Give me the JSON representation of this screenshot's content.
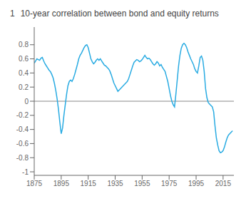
{
  "chart_data": {
    "type": "line",
    "title": "10-year correlation between bond and equity returns",
    "ylabel": "1",
    "color": "#29ABE2",
    "grid": false,
    "xlim": [
      1875,
      2023
    ],
    "ylim": [
      -1.05,
      1.05
    ],
    "xticks": [
      1875,
      1895,
      1915,
      1935,
      1955,
      1975,
      1995,
      2015
    ],
    "yticks": [
      -1,
      -0.8,
      -0.6,
      -0.4,
      -0.2,
      0,
      0.2,
      0.4,
      0.6,
      0.8
    ],
    "annotations": [
      {
        "type": "hline",
        "y": 0,
        "color": "#888888"
      }
    ],
    "x": [
      1875,
      1876,
      1877,
      1878,
      1879,
      1880,
      1881,
      1882,
      1883,
      1884,
      1885,
      1886,
      1887,
      1888,
      1889,
      1890,
      1891,
      1892,
      1893,
      1894,
      1895,
      1896,
      1897,
      1898,
      1899,
      1900,
      1901,
      1902,
      1903,
      1904,
      1905,
      1906,
      1907,
      1908,
      1909,
      1910,
      1911,
      1912,
      1913,
      1914,
      1915,
      1916,
      1917,
      1918,
      1919,
      1920,
      1921,
      1922,
      1923,
      1924,
      1925,
      1926,
      1927,
      1928,
      1929,
      1930,
      1931,
      1932,
      1933,
      1934,
      1935,
      1936,
      1937,
      1938,
      1939,
      1940,
      1941,
      1942,
      1943,
      1944,
      1945,
      1946,
      1947,
      1948,
      1949,
      1950,
      1951,
      1952,
      1953,
      1954,
      1955,
      1956,
      1957,
      1958,
      1959,
      1960,
      1961,
      1962,
      1963,
      1964,
      1965,
      1966,
      1967,
      1968,
      1969,
      1970,
      1971,
      1972,
      1973,
      1974,
      1975,
      1976,
      1977,
      1978,
      1979,
      1980,
      1981,
      1982,
      1983,
      1984,
      1985,
      1986,
      1987,
      1988,
      1989,
      1990,
      1991,
      1992,
      1993,
      1994,
      1995,
      1996,
      1997,
      1998,
      1999,
      2000,
      2001,
      2002,
      2003,
      2004,
      2005,
      2006,
      2007,
      2008,
      2009,
      2010,
      2011,
      2012,
      2013,
      2014,
      2015,
      2016,
      2017,
      2018,
      2019,
      2020,
      2021,
      2022
    ],
    "values": [
      0.54,
      0.57,
      0.6,
      0.59,
      0.58,
      0.61,
      0.62,
      0.57,
      0.53,
      0.5,
      0.47,
      0.44,
      0.42,
      0.38,
      0.33,
      0.25,
      0.15,
      0.03,
      -0.12,
      -0.3,
      -0.46,
      -0.38,
      -0.2,
      -0.05,
      0.1,
      0.22,
      0.28,
      0.3,
      0.28,
      0.32,
      0.38,
      0.45,
      0.52,
      0.6,
      0.65,
      0.68,
      0.72,
      0.76,
      0.79,
      0.8,
      0.76,
      0.68,
      0.6,
      0.56,
      0.53,
      0.55,
      0.58,
      0.6,
      0.58,
      0.6,
      0.57,
      0.54,
      0.51,
      0.5,
      0.48,
      0.46,
      0.43,
      0.38,
      0.32,
      0.26,
      0.22,
      0.18,
      0.14,
      0.16,
      0.18,
      0.2,
      0.22,
      0.24,
      0.26,
      0.28,
      0.32,
      0.38,
      0.44,
      0.5,
      0.55,
      0.57,
      0.59,
      0.58,
      0.56,
      0.57,
      0.59,
      0.62,
      0.65,
      0.62,
      0.6,
      0.61,
      0.59,
      0.56,
      0.53,
      0.51,
      0.53,
      0.56,
      0.54,
      0.5,
      0.52,
      0.48,
      0.45,
      0.42,
      0.35,
      0.28,
      0.18,
      0.08,
      0.0,
      -0.05,
      -0.08,
      0.1,
      0.3,
      0.5,
      0.65,
      0.75,
      0.8,
      0.82,
      0.8,
      0.76,
      0.7,
      0.65,
      0.6,
      0.56,
      0.52,
      0.46,
      0.42,
      0.4,
      0.5,
      0.62,
      0.64,
      0.58,
      0.42,
      0.18,
      0.05,
      -0.02,
      -0.04,
      -0.06,
      -0.08,
      -0.15,
      -0.35,
      -0.52,
      -0.62,
      -0.7,
      -0.73,
      -0.72,
      -0.7,
      -0.65,
      -0.58,
      -0.52,
      -0.48,
      -0.46,
      -0.44,
      -0.42
    ]
  }
}
